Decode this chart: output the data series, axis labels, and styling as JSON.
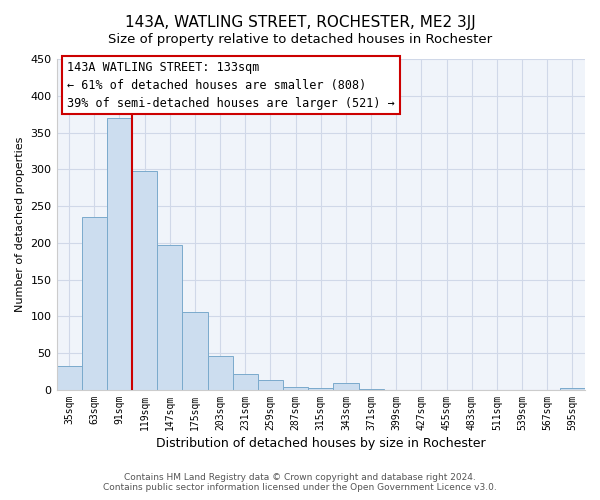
{
  "title": "143A, WATLING STREET, ROCHESTER, ME2 3JJ",
  "subtitle": "Size of property relative to detached houses in Rochester",
  "xlabel": "Distribution of detached houses by size in Rochester",
  "ylabel": "Number of detached properties",
  "bar_color": "#ccddef",
  "bar_edge_color": "#7aaacc",
  "categories": [
    "35sqm",
    "63sqm",
    "91sqm",
    "119sqm",
    "147sqm",
    "175sqm",
    "203sqm",
    "231sqm",
    "259sqm",
    "287sqm",
    "315sqm",
    "343sqm",
    "371sqm",
    "399sqm",
    "427sqm",
    "455sqm",
    "483sqm",
    "511sqm",
    "539sqm",
    "567sqm",
    "595sqm"
  ],
  "values": [
    33,
    235,
    370,
    298,
    197,
    106,
    46,
    22,
    13,
    4,
    3,
    9,
    1,
    0,
    0,
    0,
    0,
    0,
    0,
    0,
    2
  ],
  "ylim": [
    0,
    450
  ],
  "yticks": [
    0,
    50,
    100,
    150,
    200,
    250,
    300,
    350,
    400,
    450
  ],
  "line_color": "#cc0000",
  "annotation_title": "143A WATLING STREET: 133sqm",
  "annotation_line1": "← 61% of detached houses are smaller (808)",
  "annotation_line2": "39% of semi-detached houses are larger (521) →",
  "footer_line1": "Contains HM Land Registry data © Crown copyright and database right 2024.",
  "footer_line2": "Contains public sector information licensed under the Open Government Licence v3.0.",
  "background_color": "#ffffff",
  "plot_bg_color": "#f0f4fa",
  "grid_color": "#d0d8e8"
}
